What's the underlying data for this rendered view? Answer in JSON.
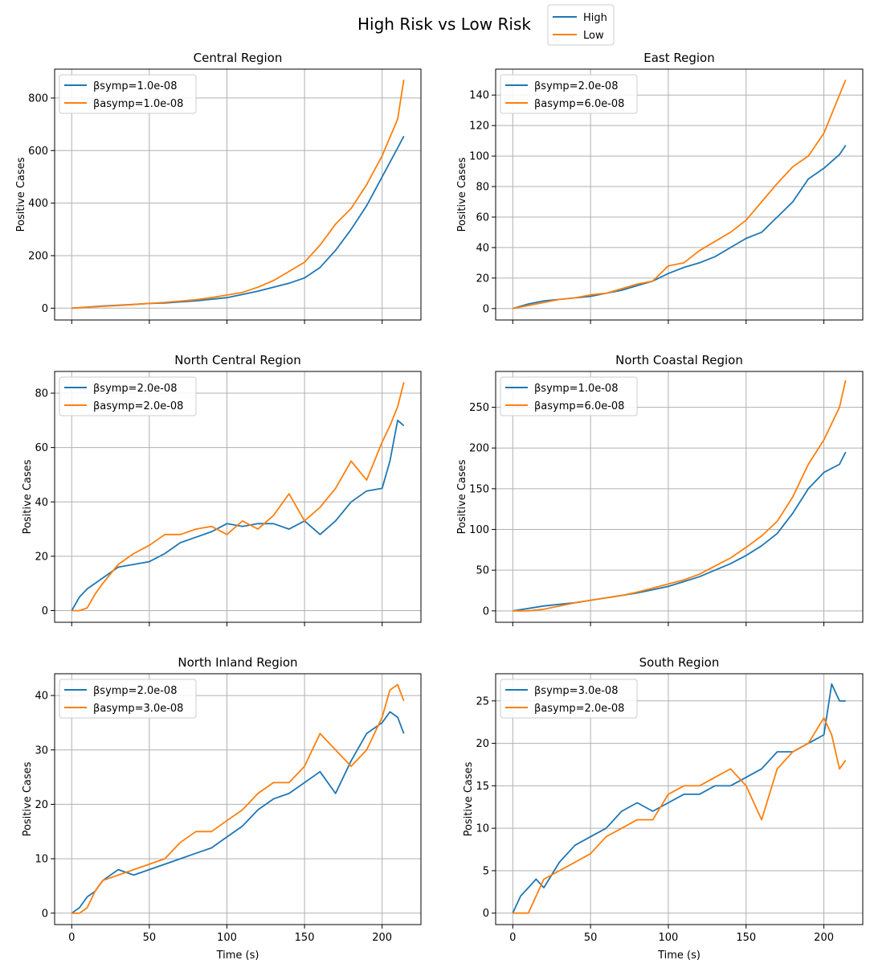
{
  "figure": {
    "suptitle": "High Risk vs Low Risk",
    "colors": {
      "High": "#1f77b4",
      "Low": "#ff7f0e",
      "grid": "#b0b0b0"
    },
    "legend": {
      "placement": "top-center",
      "entries": [
        "High",
        "Low"
      ]
    }
  },
  "chart_data": [
    {
      "type": "line",
      "title": "Central Region",
      "ylabel": "Positive Cases",
      "xlabel": "",
      "xlim": [
        -11,
        225
      ],
      "ylim": [
        -45,
        910
      ],
      "xticks": [
        0,
        50,
        100,
        150,
        200
      ],
      "yticks": [
        0,
        200,
        400,
        600,
        800
      ],
      "show_xticklabels": false,
      "grid": true,
      "legend": [
        "βsymp=1.0e-08",
        "βasymp=1.0e-08"
      ],
      "series": [
        {
          "name": "High",
          "x": [
            0,
            10,
            20,
            30,
            40,
            50,
            60,
            70,
            80,
            90,
            100,
            110,
            120,
            130,
            140,
            150,
            160,
            170,
            180,
            190,
            200,
            210,
            214
          ],
          "y": [
            0,
            4,
            8,
            11,
            14,
            18,
            20,
            24,
            28,
            34,
            40,
            52,
            65,
            80,
            95,
            115,
            155,
            220,
            300,
            390,
            500,
            610,
            655
          ]
        },
        {
          "name": "Low",
          "x": [
            0,
            10,
            20,
            30,
            40,
            50,
            60,
            70,
            80,
            90,
            100,
            110,
            120,
            130,
            140,
            150,
            160,
            170,
            180,
            190,
            200,
            210,
            214
          ],
          "y": [
            0,
            3,
            7,
            10,
            14,
            18,
            22,
            27,
            32,
            40,
            50,
            60,
            80,
            105,
            140,
            175,
            240,
            320,
            380,
            470,
            580,
            720,
            870
          ]
        }
      ]
    },
    {
      "type": "line",
      "title": "East Region",
      "ylabel": "Positive Cases",
      "xlabel": "",
      "xlim": [
        -11,
        225
      ],
      "ylim": [
        -7.5,
        157
      ],
      "xticks": [
        0,
        50,
        100,
        150,
        200
      ],
      "yticks": [
        0,
        20,
        40,
        60,
        80,
        100,
        120,
        140
      ],
      "show_xticklabels": false,
      "grid": true,
      "legend": [
        "βsymp=2.0e-08",
        "βasymp=6.0e-08"
      ],
      "series": [
        {
          "name": "High",
          "x": [
            0,
            10,
            20,
            30,
            40,
            50,
            60,
            70,
            80,
            90,
            100,
            110,
            120,
            130,
            140,
            150,
            160,
            170,
            180,
            190,
            200,
            210,
            214
          ],
          "y": [
            0,
            3,
            5,
            6,
            7,
            8,
            10,
            12,
            15,
            18,
            23,
            27,
            30,
            34,
            40,
            46,
            50,
            60,
            70,
            85,
            92,
            101,
            107
          ]
        },
        {
          "name": "Low",
          "x": [
            0,
            10,
            20,
            30,
            40,
            50,
            60,
            70,
            80,
            90,
            100,
            110,
            120,
            130,
            140,
            150,
            160,
            170,
            180,
            190,
            200,
            210,
            214
          ],
          "y": [
            0,
            2,
            4,
            6,
            7,
            9,
            10,
            13,
            16,
            18,
            28,
            30,
            38,
            44,
            50,
            58,
            70,
            82,
            93,
            100,
            115,
            140,
            150
          ]
        }
      ]
    },
    {
      "type": "line",
      "title": "North Central Region",
      "ylabel": "Positive Cases",
      "xlabel": "",
      "xlim": [
        -11,
        225
      ],
      "ylim": [
        -4.3,
        88
      ],
      "xticks": [
        0,
        50,
        100,
        150,
        200
      ],
      "yticks": [
        0,
        20,
        40,
        60,
        80
      ],
      "show_xticklabels": false,
      "grid": true,
      "legend": [
        "βsymp=2.0e-08",
        "βasymp=2.0e-08"
      ],
      "series": [
        {
          "name": "High",
          "x": [
            0,
            5,
            10,
            15,
            20,
            30,
            40,
            50,
            60,
            70,
            80,
            90,
            100,
            110,
            120,
            130,
            140,
            150,
            160,
            170,
            180,
            190,
            200,
            205,
            210,
            214
          ],
          "y": [
            0,
            5,
            8,
            10,
            12,
            16,
            17,
            18,
            21,
            25,
            27,
            29,
            32,
            31,
            32,
            32,
            30,
            33,
            28,
            33,
            40,
            44,
            45,
            55,
            70,
            68
          ]
        },
        {
          "name": "Low",
          "x": [
            0,
            5,
            10,
            15,
            20,
            30,
            40,
            50,
            60,
            70,
            80,
            90,
            100,
            110,
            120,
            130,
            140,
            150,
            160,
            170,
            180,
            190,
            200,
            205,
            210,
            214
          ],
          "y": [
            0,
            0,
            1,
            6,
            10,
            17,
            21,
            24,
            28,
            28,
            30,
            31,
            28,
            33,
            30,
            35,
            43,
            33,
            38,
            45,
            55,
            48,
            62,
            68,
            75,
            84
          ]
        }
      ]
    },
    {
      "type": "line",
      "title": "North Coastal Region",
      "ylabel": "Positive Cases",
      "xlabel": "",
      "xlim": [
        -11,
        225
      ],
      "ylim": [
        -14,
        294
      ],
      "xticks": [
        0,
        50,
        100,
        150,
        200
      ],
      "yticks": [
        0,
        50,
        100,
        150,
        200,
        250
      ],
      "show_xticklabels": false,
      "grid": true,
      "legend": [
        "βsymp=1.0e-08",
        "βasymp=6.0e-08"
      ],
      "series": [
        {
          "name": "High",
          "x": [
            0,
            10,
            20,
            30,
            40,
            50,
            60,
            70,
            80,
            90,
            100,
            110,
            120,
            130,
            140,
            150,
            160,
            170,
            180,
            190,
            200,
            210,
            214
          ],
          "y": [
            0,
            3,
            6,
            8,
            10,
            13,
            16,
            19,
            22,
            26,
            30,
            36,
            42,
            50,
            58,
            68,
            80,
            95,
            120,
            150,
            170,
            180,
            195
          ]
        },
        {
          "name": "Low",
          "x": [
            0,
            10,
            20,
            30,
            40,
            50,
            60,
            70,
            80,
            90,
            100,
            110,
            120,
            130,
            140,
            150,
            160,
            170,
            180,
            190,
            200,
            210,
            214
          ],
          "y": [
            0,
            0,
            2,
            6,
            10,
            13,
            16,
            19,
            23,
            28,
            33,
            38,
            45,
            55,
            65,
            78,
            92,
            110,
            140,
            180,
            210,
            250,
            283
          ]
        }
      ]
    },
    {
      "type": "line",
      "title": "North Inland Region",
      "ylabel": "Positive Cases",
      "xlabel": "Time (s)",
      "xlim": [
        -11,
        225
      ],
      "ylim": [
        -2.1,
        44
      ],
      "xticks": [
        0,
        50,
        100,
        150,
        200
      ],
      "yticks": [
        0,
        10,
        20,
        30,
        40
      ],
      "show_xticklabels": true,
      "grid": true,
      "legend": [
        "βsymp=2.0e-08",
        "βasymp=3.0e-08"
      ],
      "series": [
        {
          "name": "High",
          "x": [
            0,
            5,
            10,
            15,
            20,
            30,
            40,
            50,
            60,
            70,
            80,
            90,
            100,
            110,
            120,
            130,
            140,
            150,
            160,
            170,
            180,
            190,
            200,
            205,
            210,
            214
          ],
          "y": [
            0,
            1,
            3,
            4,
            6,
            8,
            7,
            8,
            9,
            10,
            11,
            12,
            14,
            16,
            19,
            21,
            22,
            24,
            26,
            22,
            28,
            33,
            35,
            37,
            36,
            33
          ]
        },
        {
          "name": "Low",
          "x": [
            0,
            5,
            10,
            15,
            20,
            30,
            40,
            50,
            60,
            70,
            80,
            90,
            100,
            110,
            120,
            130,
            140,
            150,
            160,
            170,
            180,
            190,
            200,
            205,
            210,
            214
          ],
          "y": [
            0,
            0,
            1,
            4,
            6,
            7,
            8,
            9,
            10,
            13,
            15,
            15,
            17,
            19,
            22,
            24,
            24,
            27,
            33,
            30,
            27,
            30,
            36,
            41,
            42,
            39
          ]
        }
      ]
    },
    {
      "type": "line",
      "title": "South Region",
      "ylabel": "Positive Cases",
      "xlabel": "Time (s)",
      "xlim": [
        -11,
        225
      ],
      "ylim": [
        -1.35,
        28.2
      ],
      "xticks": [
        0,
        50,
        100,
        150,
        200
      ],
      "yticks": [
        0,
        5,
        10,
        15,
        20,
        25
      ],
      "show_xticklabels": true,
      "grid": true,
      "legend": [
        "βsymp=3.0e-08",
        "βasymp=2.0e-08"
      ],
      "series": [
        {
          "name": "High",
          "x": [
            0,
            5,
            10,
            15,
            20,
            30,
            40,
            50,
            60,
            70,
            80,
            90,
            100,
            110,
            120,
            130,
            140,
            150,
            160,
            170,
            180,
            190,
            200,
            205,
            210,
            214
          ],
          "y": [
            0,
            2,
            3,
            4,
            3,
            6,
            8,
            9,
            10,
            12,
            13,
            12,
            13,
            14,
            14,
            15,
            15,
            16,
            17,
            19,
            19,
            20,
            21,
            27,
            25,
            25
          ]
        },
        {
          "name": "Low",
          "x": [
            0,
            5,
            10,
            15,
            20,
            30,
            40,
            50,
            60,
            70,
            80,
            90,
            100,
            110,
            120,
            130,
            140,
            150,
            160,
            170,
            180,
            190,
            200,
            205,
            210,
            214
          ],
          "y": [
            0,
            0,
            0,
            2,
            4,
            5,
            6,
            7,
            9,
            10,
            11,
            11,
            14,
            15,
            15,
            16,
            17,
            15,
            11,
            17,
            19,
            20,
            23,
            21,
            17,
            18
          ]
        }
      ]
    }
  ]
}
